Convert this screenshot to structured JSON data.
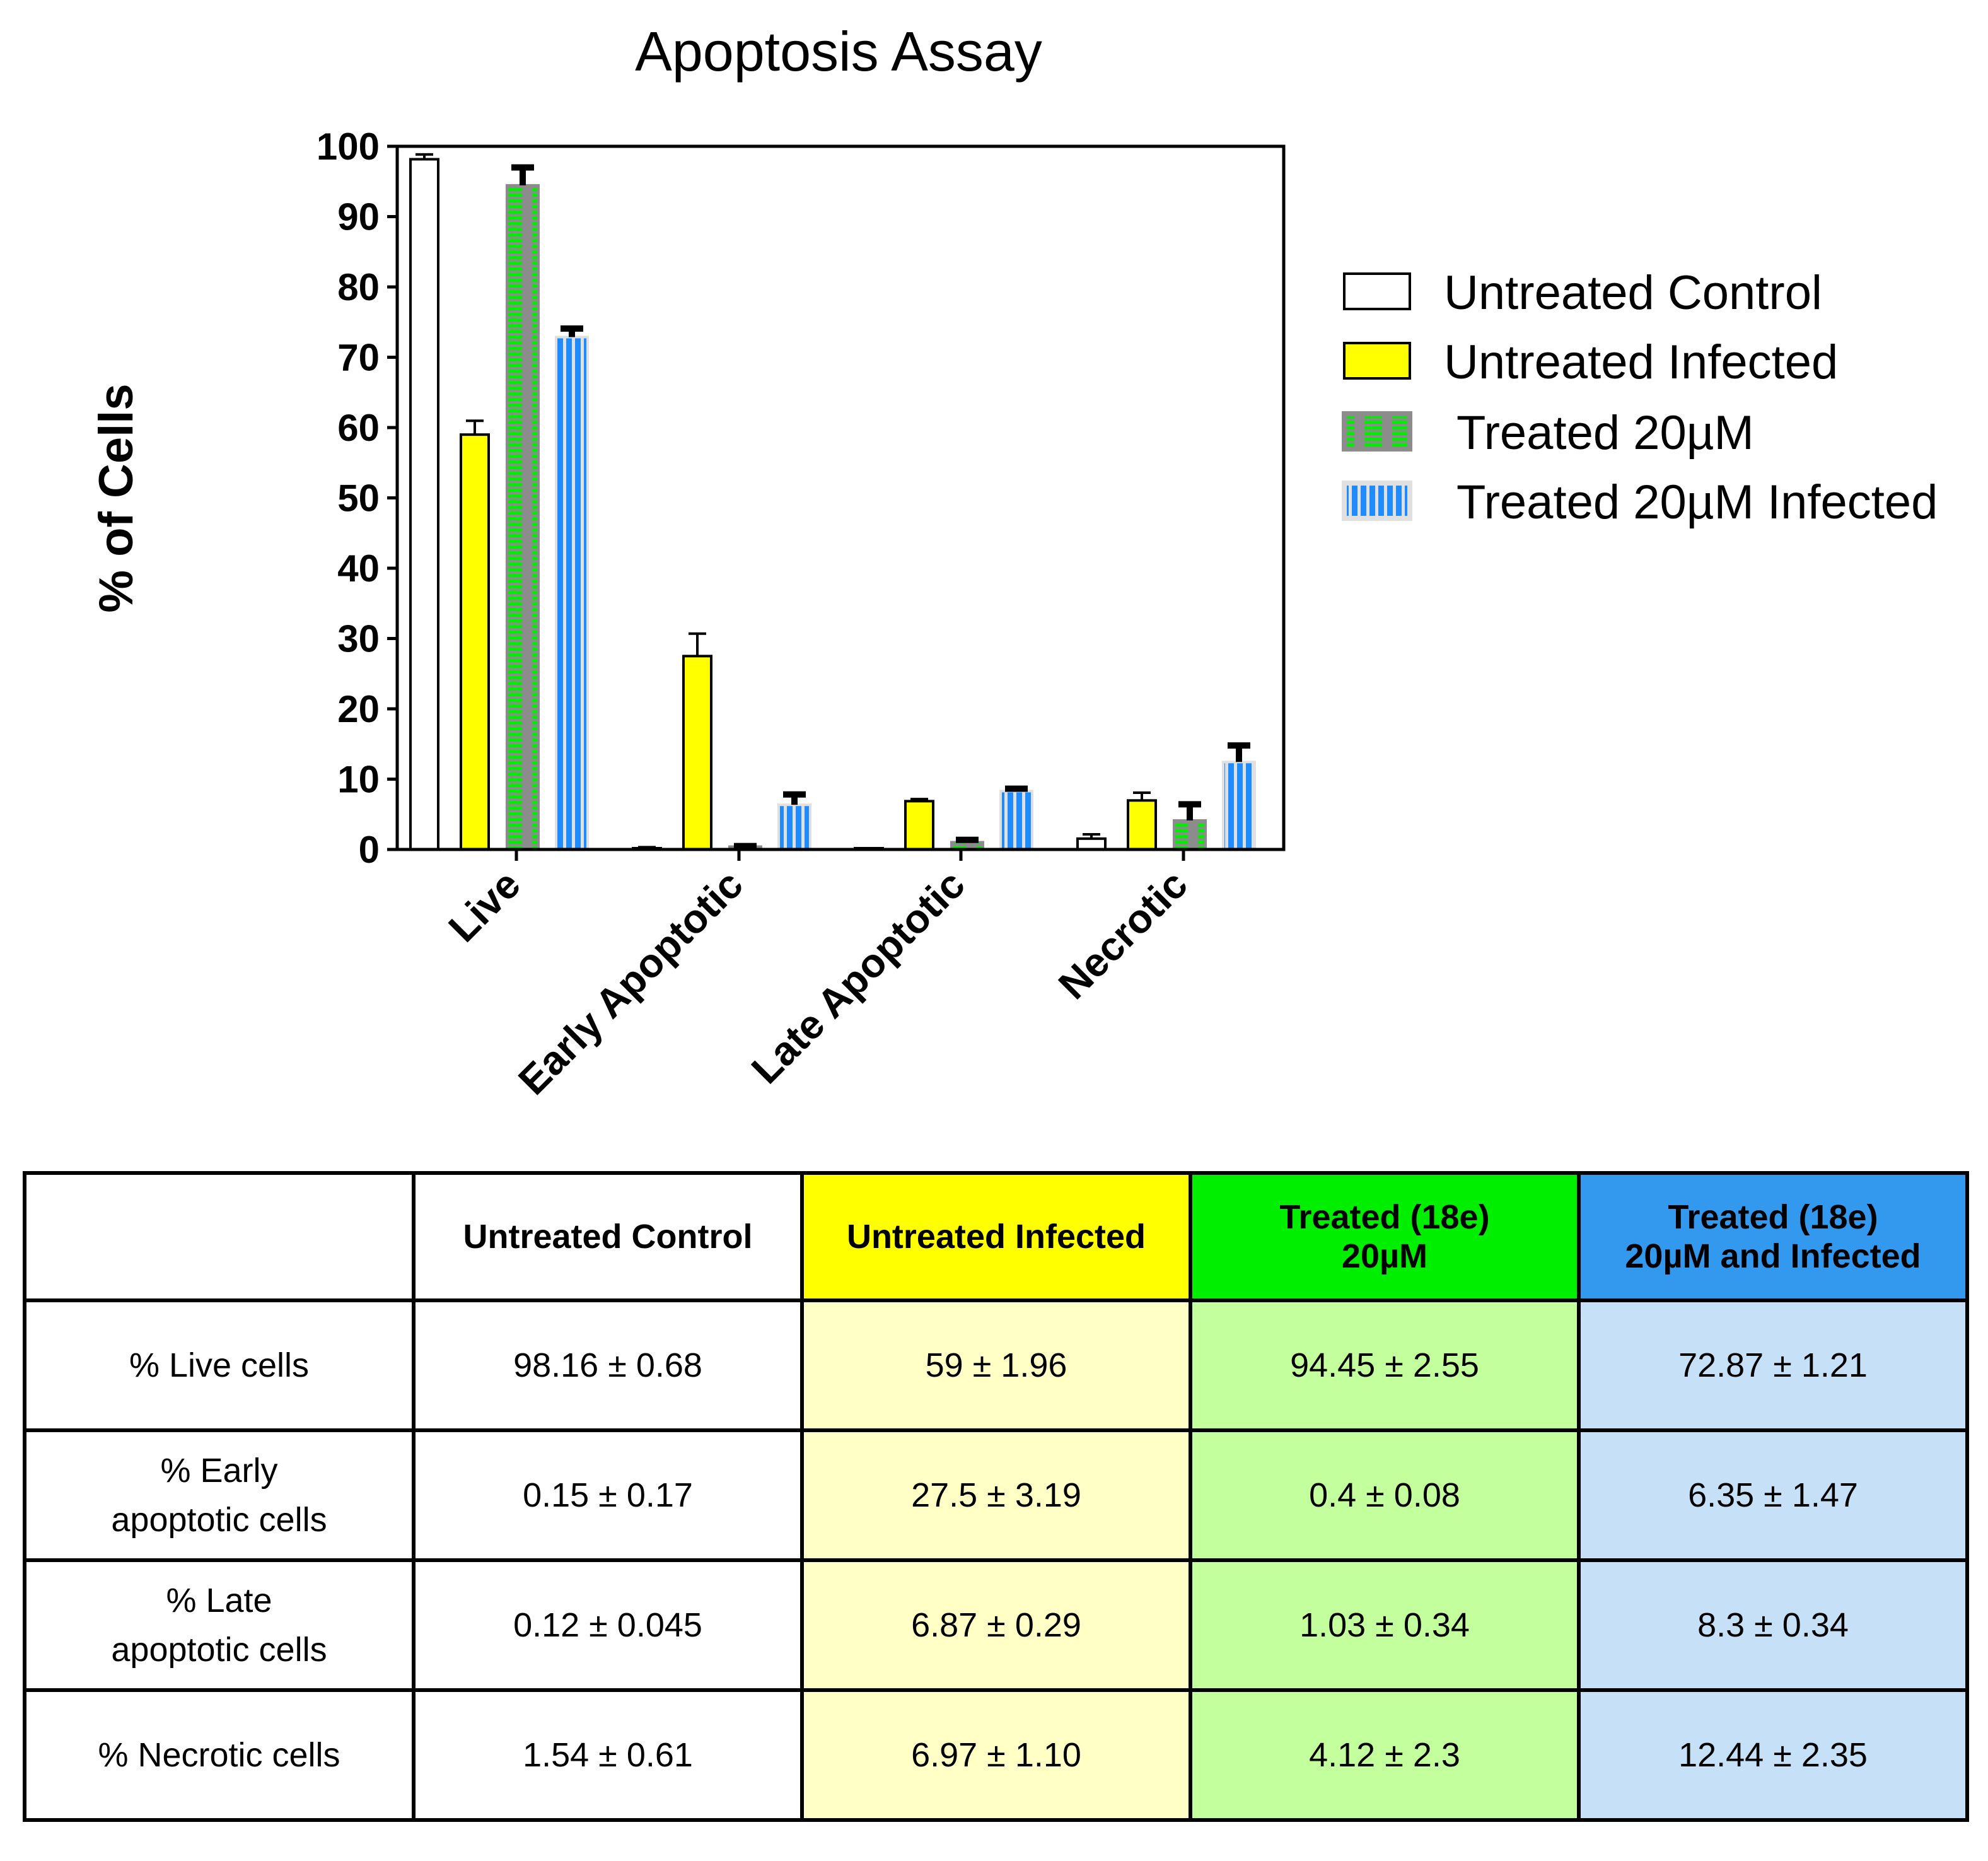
{
  "colors": {
    "untreated_control": "#ffffff",
    "untreated_infected": "#ffff00",
    "treated_fill": "#8c8c8c",
    "treated_stripe": "#00ee00",
    "treated_infected_fill": "#e0e0e0",
    "treated_infected_stripe": "#1e8bff",
    "header_infected": "#ffff00",
    "header_treated": "#00ee00",
    "header_treated_infected": "#3399ee",
    "cell_infected": "#ffffc6",
    "cell_treated": "#c4ff9e",
    "cell_treated_infected": "#c6e0f8"
  },
  "chart_data": {
    "type": "bar",
    "title": "Apoptosis Assay",
    "xlabel": "",
    "ylabel": "% of Cells",
    "ylim": [
      0,
      100
    ],
    "yticks": [
      "0",
      "10",
      "20",
      "30",
      "40",
      "50",
      "60",
      "70",
      "80",
      "90",
      "100"
    ],
    "categories": [
      "Live",
      "Early Apoptotic",
      "Late Apoptotic",
      "Necrotic"
    ],
    "legend_position": "right",
    "series": [
      {
        "name": "Untreated Control",
        "values": [
          98.16,
          0.15,
          0.12,
          1.54
        ],
        "errors": [
          0.68,
          0.17,
          0.045,
          0.61
        ]
      },
      {
        "name": "Untreated Infected",
        "values": [
          59,
          27.5,
          6.87,
          6.97
        ],
        "errors": [
          1.96,
          3.19,
          0.29,
          1.1
        ]
      },
      {
        "name": "Treated 20µM",
        "values": [
          94.45,
          0.4,
          1.03,
          4.12
        ],
        "errors": [
          2.55,
          0.08,
          0.34,
          2.3
        ]
      },
      {
        "name": "Treated 20µM Infected",
        "values": [
          72.87,
          6.35,
          8.3,
          12.44
        ],
        "errors": [
          1.21,
          1.47,
          0.34,
          2.35
        ]
      }
    ]
  },
  "table": {
    "headers": [
      "",
      "Untreated Control",
      "Untreated Infected",
      "Treated (18e)\n20µM",
      "Treated (18e)\n20µM and Infected"
    ],
    "rows": [
      {
        "label": "% Live cells",
        "cells": [
          "98.16 ± 0.68",
          "59 ± 1.96",
          "94.45 ± 2.55",
          "72.87 ± 1.21"
        ]
      },
      {
        "label": "% Early\napoptotic cells",
        "cells": [
          "0.15 ± 0.17",
          "27.5 ± 3.19",
          "0.4 ± 0.08",
          "6.35 ± 1.47"
        ]
      },
      {
        "label": "% Late\napoptotic cells",
        "cells": [
          "0.12 ± 0.045",
          "6.87 ± 0.29",
          "1.03 ± 0.34",
          "8.3 ± 0.34"
        ]
      },
      {
        "label": "% Necrotic cells",
        "cells": [
          "1.54 ± 0.61",
          "6.97 ± 1.10",
          "4.12 ± 2.3",
          "12.44 ± 2.35"
        ]
      }
    ]
  }
}
